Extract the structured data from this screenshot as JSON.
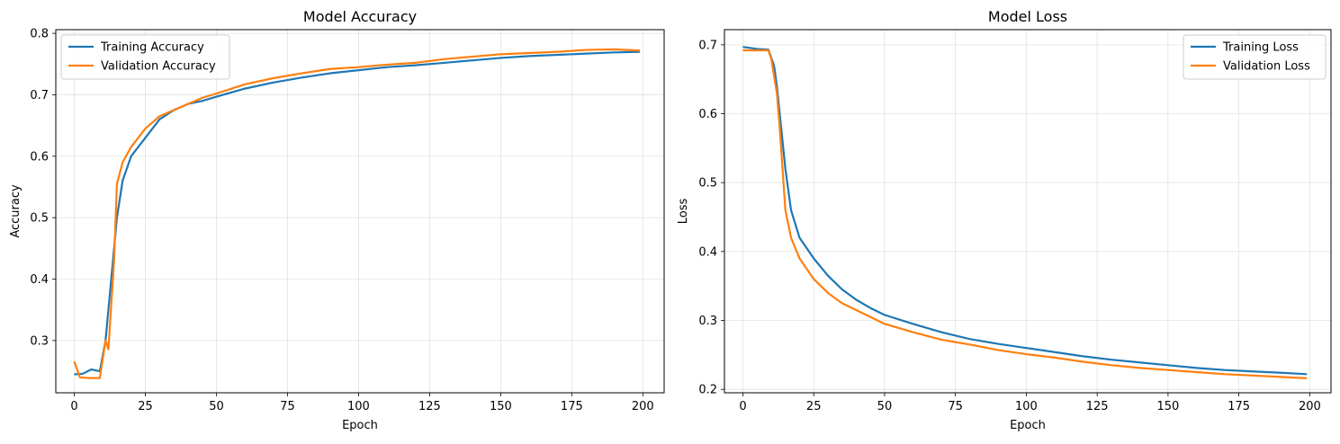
{
  "chart_data": [
    {
      "type": "line",
      "title": "Model Accuracy",
      "xlabel": "Epoch",
      "ylabel": "Accuracy",
      "xlim": [
        -6.5,
        207.5
      ],
      "ylim": [
        0.215,
        0.806
      ],
      "xticks": [
        0,
        25,
        50,
        75,
        100,
        125,
        150,
        175,
        200
      ],
      "yticks": [
        0.3,
        0.4,
        0.5,
        0.6,
        0.7,
        0.8
      ],
      "grid": true,
      "legend_position": "top-left",
      "series": [
        {
          "name": "Training Accuracy",
          "color": "#1f77b4",
          "points": [
            [
              0,
              0.245
            ],
            [
              3,
              0.246
            ],
            [
              6,
              0.253
            ],
            [
              9,
              0.25
            ],
            [
              11,
              0.3
            ],
            [
              13,
              0.4
            ],
            [
              15,
              0.5
            ],
            [
              17,
              0.56
            ],
            [
              20,
              0.6
            ],
            [
              25,
              0.63
            ],
            [
              30,
              0.66
            ],
            [
              35,
              0.675
            ],
            [
              40,
              0.685
            ],
            [
              45,
              0.69
            ],
            [
              50,
              0.697
            ],
            [
              60,
              0.71
            ],
            [
              70,
              0.72
            ],
            [
              80,
              0.728
            ],
            [
              90,
              0.735
            ],
            [
              100,
              0.74
            ],
            [
              110,
              0.745
            ],
            [
              120,
              0.748
            ],
            [
              130,
              0.752
            ],
            [
              140,
              0.756
            ],
            [
              150,
              0.76
            ],
            [
              160,
              0.763
            ],
            [
              170,
              0.765
            ],
            [
              180,
              0.767
            ],
            [
              190,
              0.769
            ],
            [
              199,
              0.77
            ]
          ]
        },
        {
          "name": "Validation Accuracy",
          "color": "#ff7f0e",
          "points": [
            [
              0,
              0.266
            ],
            [
              2,
              0.24
            ],
            [
              5,
              0.239
            ],
            [
              9,
              0.239
            ],
            [
              11,
              0.3
            ],
            [
              12,
              0.286
            ],
            [
              14,
              0.43
            ],
            [
              15,
              0.555
            ],
            [
              17,
              0.59
            ],
            [
              20,
              0.615
            ],
            [
              25,
              0.645
            ],
            [
              30,
              0.665
            ],
            [
              35,
              0.675
            ],
            [
              40,
              0.685
            ],
            [
              45,
              0.695
            ],
            [
              50,
              0.702
            ],
            [
              60,
              0.717
            ],
            [
              70,
              0.727
            ],
            [
              80,
              0.735
            ],
            [
              90,
              0.742
            ],
            [
              100,
              0.745
            ],
            [
              110,
              0.749
            ],
            [
              120,
              0.752
            ],
            [
              130,
              0.758
            ],
            [
              140,
              0.762
            ],
            [
              150,
              0.766
            ],
            [
              160,
              0.768
            ],
            [
              170,
              0.77
            ],
            [
              180,
              0.773
            ],
            [
              190,
              0.774
            ],
            [
              199,
              0.772
            ]
          ]
        }
      ]
    },
    {
      "type": "line",
      "title": "Model Loss",
      "xlabel": "Epoch",
      "ylabel": "Loss",
      "xlim": [
        -6.5,
        207.5
      ],
      "ylim": [
        0.195,
        0.722
      ],
      "xticks": [
        0,
        25,
        50,
        75,
        100,
        125,
        150,
        175,
        200
      ],
      "yticks": [
        0.2,
        0.3,
        0.4,
        0.5,
        0.6,
        0.7
      ],
      "grid": true,
      "legend_position": "top-right",
      "series": [
        {
          "name": "Training Loss",
          "color": "#1f77b4",
          "points": [
            [
              0,
              0.697
            ],
            [
              5,
              0.694
            ],
            [
              9,
              0.693
            ],
            [
              11,
              0.67
            ],
            [
              12,
              0.64
            ],
            [
              13,
              0.6
            ],
            [
              15,
              0.52
            ],
            [
              17,
              0.46
            ],
            [
              20,
              0.42
            ],
            [
              25,
              0.39
            ],
            [
              30,
              0.365
            ],
            [
              35,
              0.345
            ],
            [
              40,
              0.33
            ],
            [
              45,
              0.318
            ],
            [
              50,
              0.308
            ],
            [
              60,
              0.295
            ],
            [
              70,
              0.283
            ],
            [
              80,
              0.273
            ],
            [
              90,
              0.266
            ],
            [
              100,
              0.26
            ],
            [
              110,
              0.254
            ],
            [
              120,
              0.248
            ],
            [
              130,
              0.243
            ],
            [
              140,
              0.239
            ],
            [
              150,
              0.235
            ],
            [
              160,
              0.231
            ],
            [
              170,
              0.228
            ],
            [
              180,
              0.226
            ],
            [
              190,
              0.224
            ],
            [
              199,
              0.222
            ]
          ]
        },
        {
          "name": "Validation Loss",
          "color": "#ff7f0e",
          "points": [
            [
              0,
              0.692
            ],
            [
              5,
              0.692
            ],
            [
              9,
              0.692
            ],
            [
              10,
              0.68
            ],
            [
              12,
              0.63
            ],
            [
              13,
              0.58
            ],
            [
              14,
              0.52
            ],
            [
              15,
              0.46
            ],
            [
              17,
              0.42
            ],
            [
              20,
              0.39
            ],
            [
              25,
              0.36
            ],
            [
              30,
              0.34
            ],
            [
              35,
              0.325
            ],
            [
              40,
              0.315
            ],
            [
              45,
              0.305
            ],
            [
              50,
              0.295
            ],
            [
              60,
              0.283
            ],
            [
              70,
              0.272
            ],
            [
              80,
              0.265
            ],
            [
              90,
              0.257
            ],
            [
              100,
              0.251
            ],
            [
              110,
              0.246
            ],
            [
              120,
              0.24
            ],
            [
              130,
              0.235
            ],
            [
              140,
              0.231
            ],
            [
              150,
              0.228
            ],
            [
              160,
              0.225
            ],
            [
              170,
              0.222
            ],
            [
              180,
              0.22
            ],
            [
              190,
              0.218
            ],
            [
              199,
              0.216
            ]
          ]
        }
      ]
    }
  ]
}
